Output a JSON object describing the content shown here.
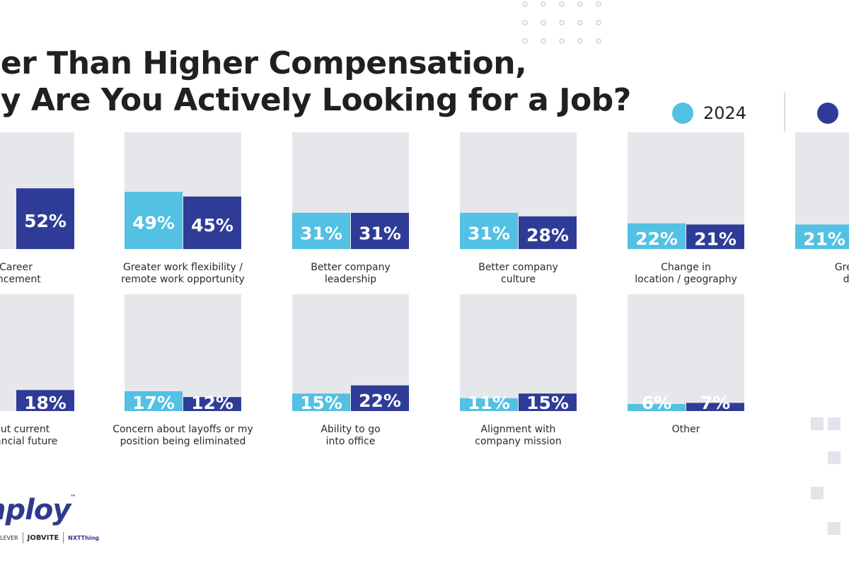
{
  "title_lines": [
    "her Than Higher Compensation,",
    "hy Are You Actively Looking for a Job?"
  ],
  "legend": [
    {
      "label": "2024",
      "color": "#52c1e3"
    },
    {
      "label": "",
      "color": "#2e3c97"
    }
  ],
  "colors": {
    "light": "#52c1e3",
    "dark": "#2e3c97",
    "track": "#e6e7ea"
  },
  "logo": {
    "text": "nploy",
    "tm": "™"
  },
  "sublogos": [
    "LEVER",
    "JOBVITE",
    "NXTThing"
  ],
  "chart_data": {
    "type": "bar",
    "ylim": [
      0,
      100
    ],
    "series_colors": [
      "#52c1e3",
      "#2e3c97"
    ],
    "panels": [
      {
        "label_lines": [
          "Career",
          "ancement"
        ],
        "values": [
          null,
          52
        ],
        "labels": [
          "%",
          "52%"
        ]
      },
      {
        "label_lines": [
          "Greater work flexibility /",
          "remote work opportunity"
        ],
        "values": [
          49,
          45
        ],
        "labels": [
          "49%",
          "45%"
        ]
      },
      {
        "label_lines": [
          "Better company",
          "leadership"
        ],
        "values": [
          31,
          31
        ],
        "labels": [
          "31%",
          "31%"
        ]
      },
      {
        "label_lines": [
          "Better company",
          "culture"
        ],
        "values": [
          31,
          28
        ],
        "labels": [
          "31%",
          "28%"
        ]
      },
      {
        "label_lines": [
          "Change in",
          "location / geography"
        ],
        "values": [
          22,
          21
        ],
        "labels": [
          "22%",
          "21%"
        ]
      },
      {
        "label_lines": [
          "Greater",
          "dive"
        ],
        "values": [
          21,
          null
        ],
        "labels": [
          "21%",
          ""
        ]
      },
      {
        "label_lines": [
          "about current",
          "s financial future"
        ],
        "values": [
          null,
          18
        ],
        "labels": [
          "%",
          "18%"
        ]
      },
      {
        "label_lines": [
          "Concern about layoffs or my",
          "position being eliminated"
        ],
        "values": [
          17,
          12
        ],
        "labels": [
          "17%",
          "12%"
        ]
      },
      {
        "label_lines": [
          "Ability to go",
          "into office"
        ],
        "values": [
          15,
          22
        ],
        "labels": [
          "15%",
          "22%"
        ]
      },
      {
        "label_lines": [
          "Alignment with",
          "company mission"
        ],
        "values": [
          11,
          15
        ],
        "labels": [
          "11%",
          "15%"
        ]
      },
      {
        "label_lines": [
          "Other"
        ],
        "values": [
          6,
          7
        ],
        "labels": [
          "6%",
          "7%"
        ]
      }
    ]
  }
}
